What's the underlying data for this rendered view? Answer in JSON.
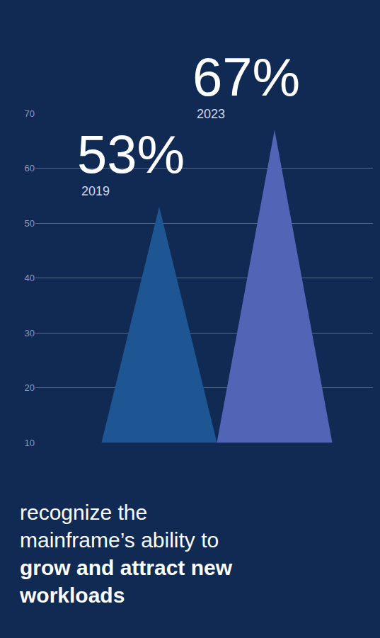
{
  "chart_data": {
    "type": "bar",
    "categories": [
      "2019",
      "2023"
    ],
    "values": [
      53,
      67
    ],
    "value_labels": [
      "53%",
      "67%"
    ],
    "data_labels": true,
    "colors": [
      "#1e5593",
      "#5264b6"
    ],
    "ylim": [
      10,
      70
    ],
    "yticks": [
      10,
      20,
      30,
      40,
      50,
      60,
      70
    ],
    "grid": true,
    "tick_labels": "y",
    "annotations": [
      "recognize the mainframe’s ability to",
      "grow and attract new workloads"
    ]
  }
}
